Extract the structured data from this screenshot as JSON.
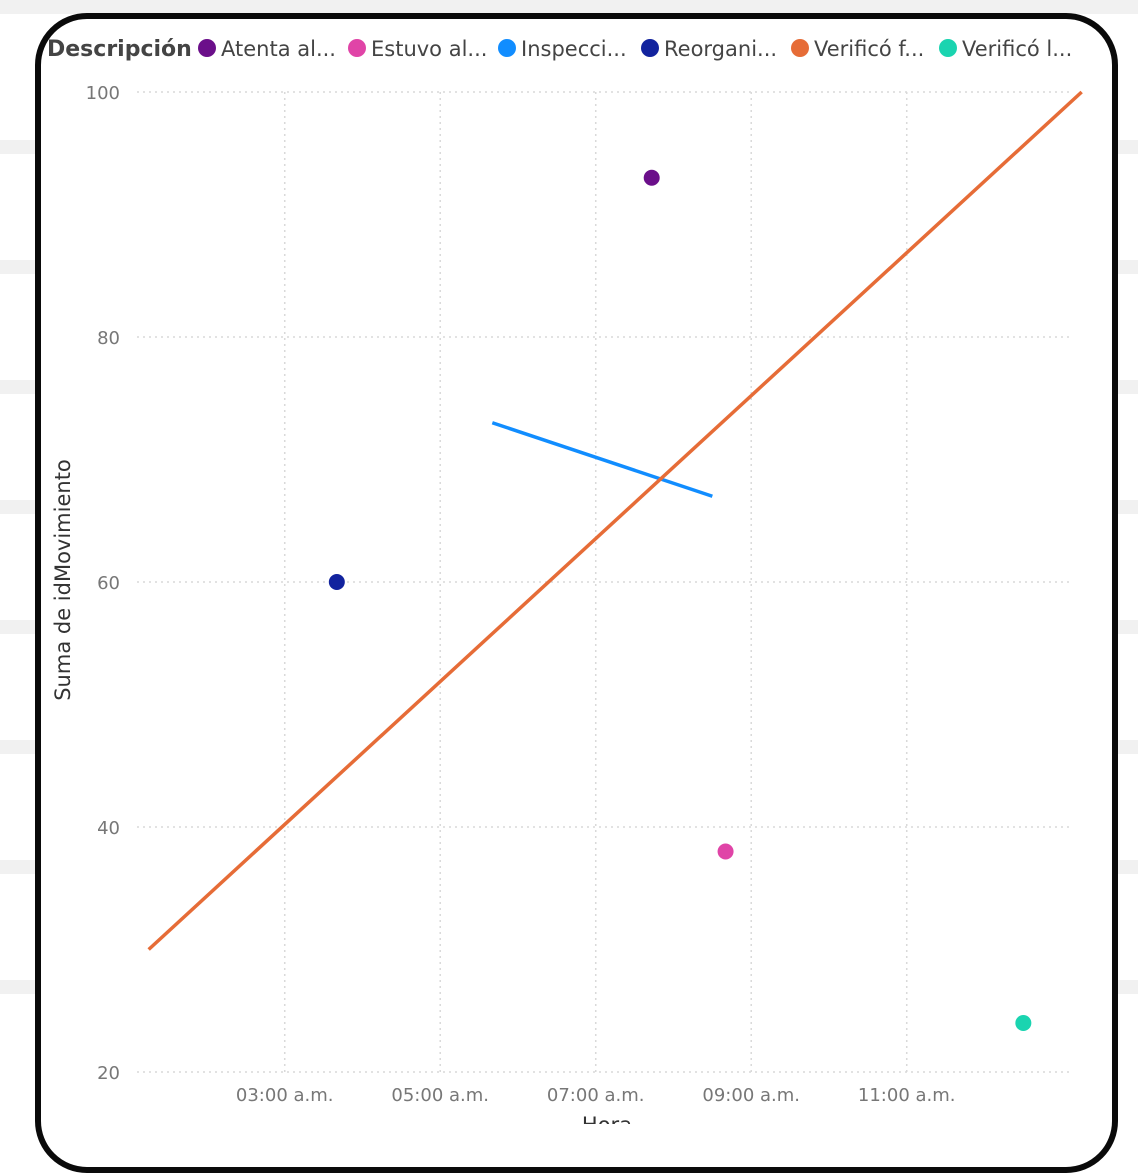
{
  "chart_data": {
    "type": "scatter",
    "legend_title": "Descripción",
    "legend_position": "top-left",
    "ylabel": "Suma de idMovimiento",
    "xlabel": "Hora",
    "ylim": [
      20,
      100
    ],
    "yticks": [
      20,
      40,
      60,
      80,
      100
    ],
    "xlim_hours": [
      1.1,
      13.1
    ],
    "xticks": [
      {
        "label": "03:00 a.m.",
        "hour": 3
      },
      {
        "label": "05:00 a.m.",
        "hour": 5
      },
      {
        "label": "07:00 a.m.",
        "hour": 7
      },
      {
        "label": "09:00 a.m.",
        "hour": 9
      },
      {
        "label": "11:00 a.m.",
        "hour": 11
      }
    ],
    "grid": true,
    "series": [
      {
        "name": "Atenta al...",
        "color": "#6b0f8a",
        "mode": "markers",
        "points": [
          {
            "x": "07:43 a.m.",
            "hour": 7.72,
            "y": 93
          }
        ]
      },
      {
        "name": "Estuvo al...",
        "color": "#e044a7",
        "mode": "markers",
        "points": [
          {
            "x": "08:40 a.m.",
            "hour": 8.67,
            "y": 38
          }
        ]
      },
      {
        "name": "Inspecci...",
        "color": "#118dff",
        "mode": "line",
        "points": [
          {
            "x": "05:40 a.m.",
            "hour": 5.67,
            "y": 73
          },
          {
            "x": "08:30 a.m.",
            "hour": 8.5,
            "y": 67
          }
        ]
      },
      {
        "name": "Reorgani...",
        "color": "#12239e",
        "mode": "markers",
        "points": [
          {
            "x": "03:40 a.m.",
            "hour": 3.67,
            "y": 60
          }
        ]
      },
      {
        "name": "Verificó f...",
        "color": "#e66c37",
        "mode": "line",
        "points": [
          {
            "x": "01:15 a.m.",
            "hour": 1.25,
            "y": 30
          },
          {
            "x": "01:15 p.m.",
            "hour": 13.25,
            "y": 100
          }
        ]
      },
      {
        "name": "Verificó l...",
        "color": "#1ad4b0",
        "mode": "markers",
        "points": [
          {
            "x": "12:30 p.m.",
            "hour": 12.5,
            "y": 24
          }
        ]
      }
    ]
  }
}
